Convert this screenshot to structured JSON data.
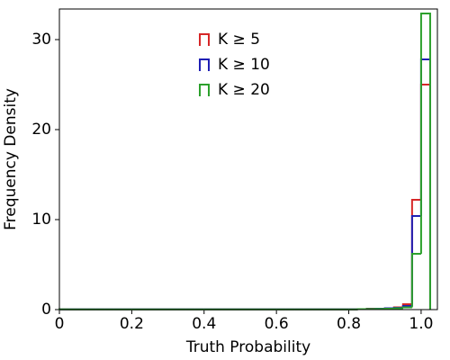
{
  "chart_data": {
    "type": "histogram",
    "xlabel": "Truth Probability",
    "ylabel": "Frequency Density",
    "bins": [
      0,
      0.025,
      0.05,
      0.075,
      0.1,
      0.125,
      0.15,
      0.175,
      0.2,
      0.225,
      0.25,
      0.275,
      0.3,
      0.325,
      0.35,
      0.375,
      0.4,
      0.425,
      0.45,
      0.475,
      0.5,
      0.525,
      0.55,
      0.575,
      0.6,
      0.625,
      0.65,
      0.675,
      0.7,
      0.725,
      0.75,
      0.775,
      0.8,
      0.825,
      0.85,
      0.875,
      0.9,
      0.925,
      0.95,
      0.975,
      1,
      1.025
    ],
    "series": [
      {
        "name": "K ≥ 5",
        "color": "#d62728",
        "values": [
          0.02,
          0.02,
          0.02,
          0.02,
          0.02,
          0.02,
          0.02,
          0.02,
          0.02,
          0.02,
          0.02,
          0.02,
          0.02,
          0.02,
          0.02,
          0.02,
          0.02,
          0.02,
          0.02,
          0.02,
          0.02,
          0.02,
          0.02,
          0.02,
          0.02,
          0.02,
          0.02,
          0.02,
          0.02,
          0.02,
          0.02,
          0.02,
          0.02,
          0.05,
          0.1,
          0.1,
          0.15,
          0.25,
          0.6,
          12.2,
          25.0
        ]
      },
      {
        "name": "K ≥ 10",
        "color": "#1f1fb4",
        "values": [
          0.03,
          0.03,
          0.03,
          0.03,
          0.03,
          0.03,
          0.03,
          0.03,
          0.03,
          0.03,
          0.03,
          0.03,
          0.03,
          0.03,
          0.03,
          0.03,
          0.03,
          0.03,
          0.03,
          0.03,
          0.03,
          0.03,
          0.03,
          0.03,
          0.03,
          0.03,
          0.03,
          0.03,
          0.03,
          0.03,
          0.03,
          0.03,
          0.03,
          0.05,
          0.08,
          0.1,
          0.15,
          0.2,
          0.4,
          10.4,
          27.8
        ]
      },
      {
        "name": "K ≥ 20",
        "color": "#2ca02c",
        "values": [
          0.02,
          0.02,
          0.02,
          0.02,
          0.02,
          0.02,
          0.02,
          0.02,
          0.02,
          0.02,
          0.02,
          0.02,
          0.02,
          0.02,
          0.02,
          0.02,
          0.02,
          0.02,
          0.02,
          0.02,
          0.02,
          0.02,
          0.02,
          0.02,
          0.02,
          0.02,
          0.02,
          0.02,
          0.02,
          0.02,
          0.02,
          0.02,
          0.02,
          0.05,
          0.06,
          0.08,
          0.1,
          0.15,
          0.25,
          6.2,
          32.9
        ]
      }
    ],
    "xlim": [
      0,
      1.045
    ],
    "ylim": [
      0,
      33.4
    ],
    "xticks": [
      0,
      0.2,
      0.4,
      0.6,
      0.8,
      {
        "value": 1,
        "label": "1.0"
      }
    ],
    "yticks": [
      0,
      10,
      20,
      30
    ],
    "legend": "upper center"
  }
}
